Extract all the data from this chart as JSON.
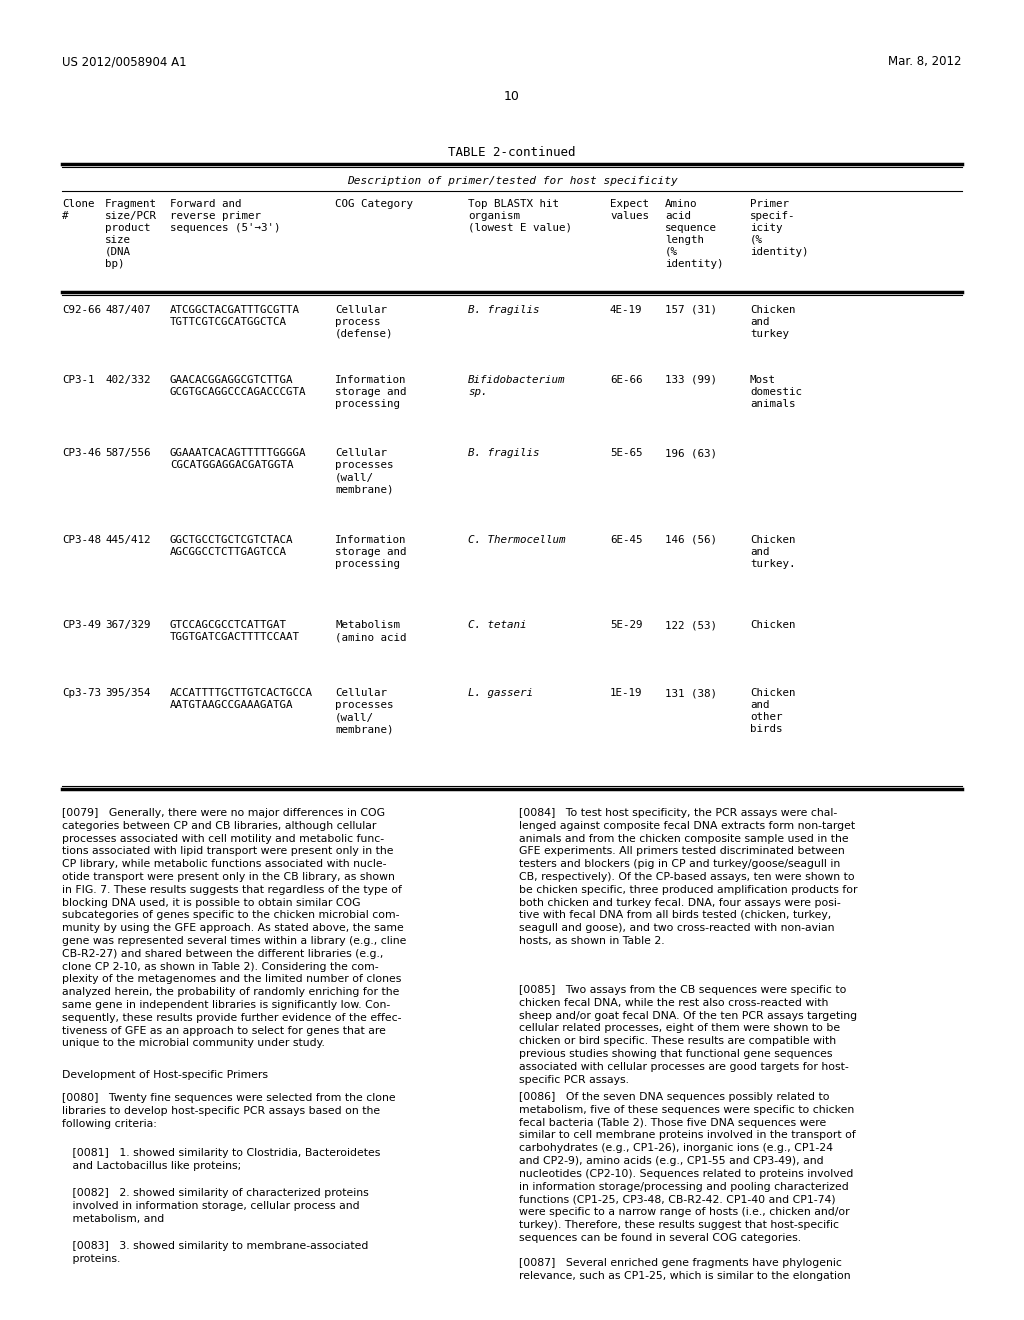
{
  "header_left": "US 2012/0058904 A1",
  "header_right": "Mar. 8, 2012",
  "page_number": "10",
  "table_title": "TABLE 2-continued",
  "table_subtitle": "Description of primer/tested for host specificity",
  "table_rows": [
    {
      "clone": "C92-66",
      "size": "487/407",
      "primer_line1": "ATCGGCTACGATTTGCGTTA",
      "primer_line2": "TGTTCGTCGCATGGCTCA",
      "cog": "Cellular\nprocess\n(defense)",
      "organism": "B. fragilis",
      "organism_italic": true,
      "expect": "4E-19",
      "aa_length": "157 (31)",
      "specificity": "Chicken\nand\nturkey"
    },
    {
      "clone": "CP3-1",
      "size": "402/332",
      "primer_line1": "GAACACGGAGGCGTCTTGA",
      "primer_line2": "GCGTGCAGGCCCAGACCCGTA",
      "cog": "Information\nstorage and\nprocessing",
      "organism": "Bifidobacterium\nsp.",
      "organism_italic": true,
      "expect": "6E-66",
      "aa_length": "133 (99)",
      "specificity": "Most\ndomestic\nanimals"
    },
    {
      "clone": "CP3-46",
      "size": "587/556",
      "primer_line1": "GGAAATCACAGTTTTTGGGGA",
      "primer_line2": "CGCATGGAGGACGATGGTA",
      "cog": "Cellular\nprocesses\n(wall/\nmembrane)",
      "organism": "B. fragilis",
      "organism_italic": true,
      "expect": "5E-65",
      "aa_length": "196 (63)",
      "specificity": ""
    },
    {
      "clone": "CP3-48",
      "size": "445/412",
      "primer_line1": "GGCTGCCTGCTCGTCTACA",
      "primer_line2": "AGCGGCCTCTTGAGTCCA",
      "cog": "Information\nstorage and\nprocessing",
      "organism": "C. Thermocellum",
      "organism_italic": true,
      "expect": "6E-45",
      "aa_length": "146 (56)",
      "specificity": "Chicken\nand\nturkey."
    },
    {
      "clone": "CP3-49",
      "size": "367/329",
      "primer_line1": "GTCCAGCGCCTCATTGAT",
      "primer_line2": "TGGTGATCGACTTTTCCAAT",
      "cog": "Metabolism\n(amino acid",
      "organism": "C. tetani",
      "organism_italic": true,
      "expect": "5E-29",
      "aa_length": "122 (53)",
      "specificity": "Chicken"
    },
    {
      "clone": "Cp3-73",
      "size": "395/354",
      "primer_line1": "ACCATTTTGCTTGTCACTGCCA",
      "primer_line2": "AATGTAAGCCGAAAGATGA",
      "cog": "Cellular\nprocesses\n(wall/\nmembrane)",
      "organism": "L. gasseri",
      "organism_italic": true,
      "expect": "1E-19",
      "aa_length": "131 (38)",
      "specificity": "Chicken\nand\nother\nbirds"
    }
  ],
  "bg_color": "#ffffff",
  "text_color": "#000000"
}
